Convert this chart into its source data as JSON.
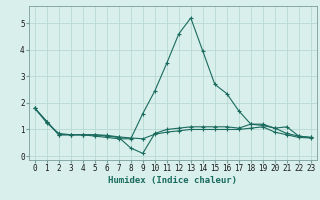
{
  "xlabel": "Humidex (Indice chaleur)",
  "ylabel": "",
  "bg_color": "#d8efec",
  "grid_color": "#b8d8d4",
  "line_color": "#1a6b5e",
  "xlim": [
    -0.5,
    23.5
  ],
  "ylim": [
    -0.15,
    5.65
  ],
  "xticks": [
    0,
    1,
    2,
    3,
    4,
    5,
    6,
    7,
    8,
    9,
    10,
    11,
    12,
    13,
    14,
    15,
    16,
    17,
    18,
    19,
    20,
    21,
    22,
    23
  ],
  "yticks": [
    0,
    1,
    2,
    3,
    4,
    5
  ],
  "series": [
    [
      1.8,
      1.3,
      0.8,
      0.8,
      0.8,
      0.8,
      0.75,
      0.7,
      0.3,
      0.1,
      0.85,
      1.0,
      1.05,
      1.1,
      1.1,
      1.1,
      1.1,
      1.05,
      1.2,
      1.15,
      1.05,
      0.85,
      0.75,
      0.7
    ],
    [
      1.8,
      1.3,
      0.8,
      0.8,
      0.8,
      0.75,
      0.7,
      0.65,
      0.65,
      1.6,
      2.45,
      3.5,
      4.6,
      5.2,
      3.95,
      2.7,
      2.35,
      1.7,
      1.2,
      1.2,
      1.05,
      1.1,
      0.75,
      0.7
    ],
    [
      1.8,
      1.25,
      0.85,
      0.8,
      0.8,
      0.8,
      0.78,
      0.72,
      0.68,
      0.65,
      0.82,
      0.9,
      0.95,
      1.0,
      1.0,
      1.0,
      1.0,
      1.0,
      1.05,
      1.1,
      0.9,
      0.8,
      0.7,
      0.68
    ]
  ],
  "xlabel_fontsize": 6.5,
  "tick_fontsize": 5.5,
  "spine_color": "#7a9e9a"
}
